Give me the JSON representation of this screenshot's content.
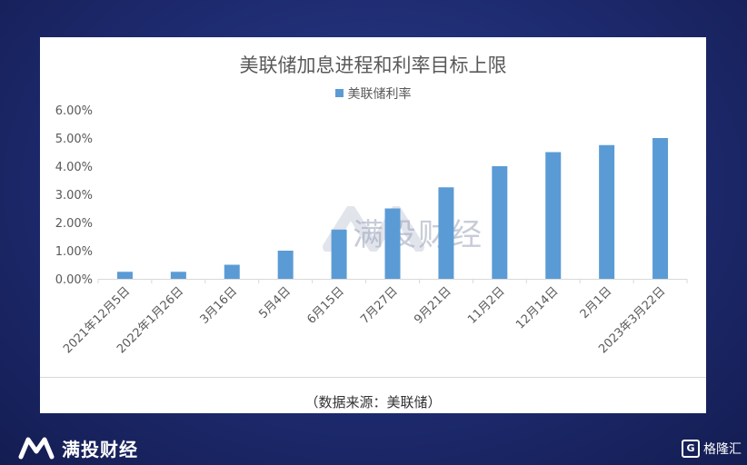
{
  "chart_data": {
    "type": "bar",
    "title": "美联储加息进程和利率目标上限",
    "legend": "美联储利率",
    "legend_position": "top",
    "categories": [
      "2021年12月5日",
      "2022年1月26日",
      "3月16日",
      "5月4日",
      "6月15日",
      "7月27日",
      "9月21日",
      "11月2日",
      "12月14日",
      "2月1日",
      "2023年3月22日"
    ],
    "series": [
      {
        "name": "美联储利率",
        "values": [
          0.25,
          0.25,
          0.5,
          1.0,
          1.75,
          2.5,
          3.25,
          4.0,
          4.5,
          4.75,
          5.0
        ]
      }
    ],
    "y_ticks": [
      "0.00%",
      "1.00%",
      "2.00%",
      "3.00%",
      "4.00%",
      "5.00%",
      "6.00%"
    ],
    "ylim": [
      0,
      6
    ],
    "grid": false,
    "bar_color": "#5b9bd5"
  },
  "source_note": "（数据来源：美联储）",
  "watermark": "满投财经",
  "brand": {
    "name": "满投财经"
  },
  "corner_logo": {
    "box": "G",
    "name": "格隆汇"
  }
}
